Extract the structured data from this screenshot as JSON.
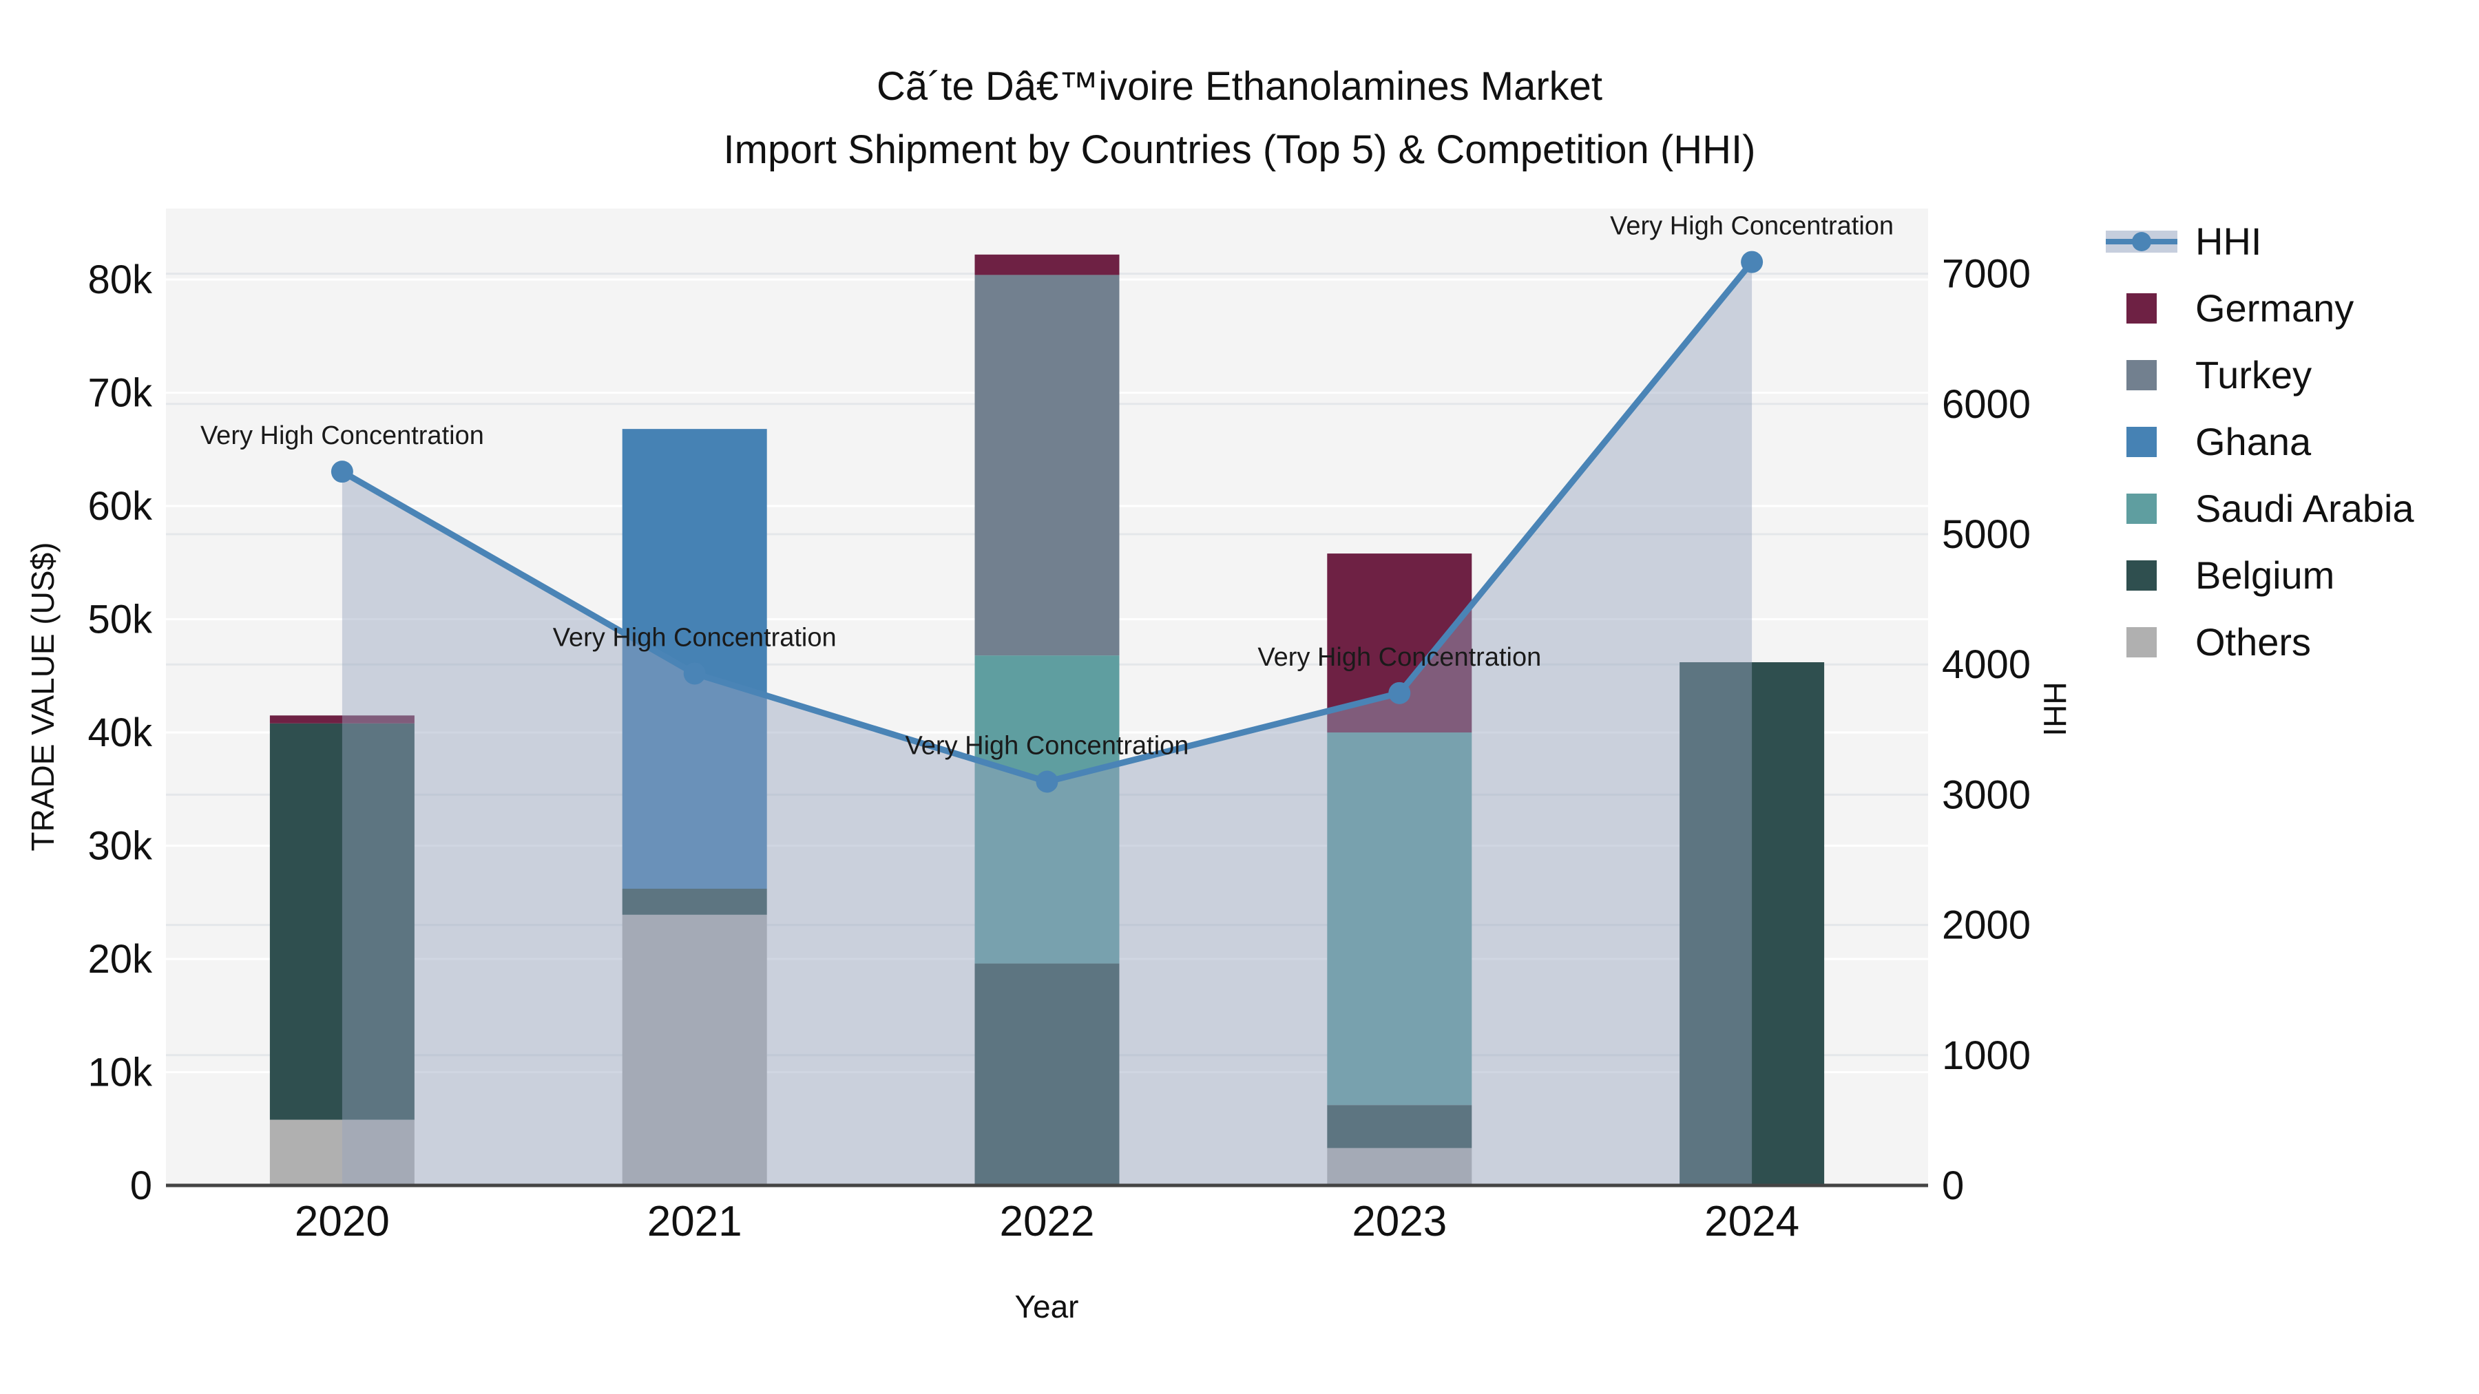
{
  "title": {
    "line1": "Cã´te Dâ€™ivoire Ethanolamines Market",
    "line2": "Import Shipment by Countries (Top 5) & Competition (HHI)"
  },
  "legend": {
    "position": "top-right-outside",
    "items": [
      {
        "label": "HHI",
        "type": "line",
        "color": "#4a84b6",
        "band_color": "#c6cedd"
      },
      {
        "label": "Germany",
        "type": "swatch",
        "color": "#6e2144"
      },
      {
        "label": "Turkey",
        "type": "swatch",
        "color": "#72808f"
      },
      {
        "label": "Ghana",
        "type": "swatch",
        "color": "#4682b4"
      },
      {
        "label": "Saudi Arabia",
        "type": "swatch",
        "color": "#5f9ea0"
      },
      {
        "label": "Belgium",
        "type": "swatch",
        "color": "#2f4f4f"
      },
      {
        "label": "Others",
        "type": "swatch",
        "color": "#b0b0b0"
      }
    ]
  },
  "chart_data": {
    "type": "bar-line-combo",
    "bar_type": "stacked-bar",
    "title": "Cã´te Dâ€™ivoire Ethanolamines Market Import Shipment by Countries (Top 5) & Competition (HHI)",
    "xlabel": "Year",
    "ylabel_left": "TRADE VALUE (US$)",
    "ylabel_right": "HHI",
    "categories": [
      "2020",
      "2021",
      "2022",
      "2023",
      "2024"
    ],
    "bar_series": [
      {
        "name": "Others",
        "color": "#b0b0b0",
        "values": [
          5800,
          23900,
          0,
          3300,
          0
        ]
      },
      {
        "name": "Belgium",
        "color": "#2f4f4f",
        "values": [
          35000,
          2300,
          19600,
          3800,
          46200
        ]
      },
      {
        "name": "Saudi Arabia",
        "color": "#5f9ea0",
        "values": [
          0,
          0,
          27200,
          32900,
          0
        ]
      },
      {
        "name": "Ghana",
        "color": "#4682b4",
        "values": [
          0,
          40600,
          0,
          0,
          0
        ]
      },
      {
        "name": "Turkey",
        "color": "#72808f",
        "values": [
          0,
          0,
          33600,
          0,
          0
        ]
      },
      {
        "name": "Germany",
        "color": "#6e2144",
        "values": [
          700,
          0,
          1800,
          15800,
          0
        ]
      }
    ],
    "bar_totals": [
      41500,
      66800,
      82200,
      55800,
      46200
    ],
    "line_series": {
      "name": "HHI",
      "axis": "right",
      "color": "#4a84b6",
      "markers": true,
      "area_fill": true,
      "values": [
        5480,
        3930,
        3100,
        3780,
        7090
      ]
    },
    "annotations": [
      {
        "year": "2020",
        "text": "Very High Concentration"
      },
      {
        "year": "2021",
        "text": "Very High Concentration"
      },
      {
        "year": "2022",
        "text": "Very High Concentration"
      },
      {
        "year": "2023",
        "text": "Very High Concentration"
      },
      {
        "year": "2024",
        "text": "Very High Concentration"
      }
    ],
    "y_left": {
      "max": 86260,
      "ticks": [
        {
          "label": "0",
          "value": 0
        },
        {
          "label": "10k",
          "value": 10000
        },
        {
          "label": "20k",
          "value": 20000
        },
        {
          "label": "30k",
          "value": 30000
        },
        {
          "label": "40k",
          "value": 40000
        },
        {
          "label": "50k",
          "value": 50000
        },
        {
          "label": "60k",
          "value": 60000
        },
        {
          "label": "70k",
          "value": 70000
        },
        {
          "label": "80k",
          "value": 80000
        }
      ]
    },
    "y_right": {
      "max": 7500,
      "ticks": [
        {
          "label": "0",
          "value": 0
        },
        {
          "label": "1000",
          "value": 1000
        },
        {
          "label": "2000",
          "value": 2000
        },
        {
          "label": "3000",
          "value": 3000
        },
        {
          "label": "4000",
          "value": 4000
        },
        {
          "label": "5000",
          "value": 5000
        },
        {
          "label": "6000",
          "value": 6000
        },
        {
          "label": "7000",
          "value": 7000
        }
      ]
    },
    "layout": {
      "plot_bg": "#f4f4f4",
      "grid_left_color": "#ffffff",
      "grid_right_color": "#e4e7ea",
      "axis_line_color": "#444444",
      "area_fill_color": "rgba(150,165,190,0.45)",
      "grid": true
    }
  }
}
